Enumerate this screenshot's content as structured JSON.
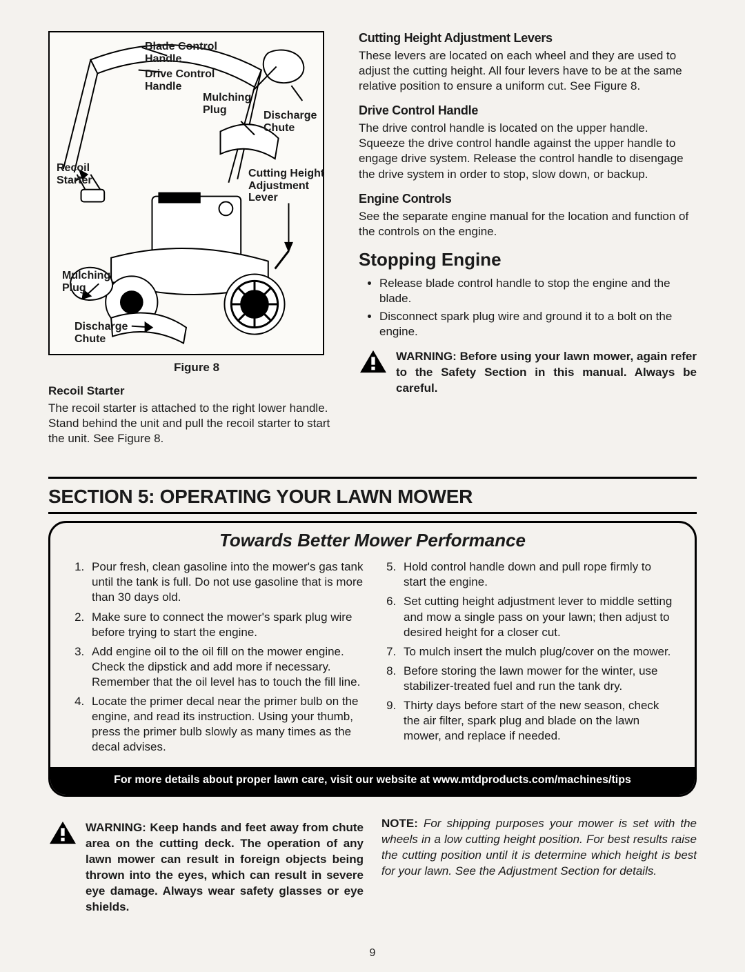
{
  "page_number": "9",
  "colors": {
    "text": "#1a1a1a",
    "page_bg": "#f4f2ee",
    "box_bg": "#fbfaf7",
    "border": "#000000",
    "footer_bg": "#000000",
    "footer_text": "#ffffff"
  },
  "typography": {
    "body_family": "Arial, Helvetica, sans-serif",
    "narrow_family": "Arial Narrow, Arial, sans-serif",
    "body_size_pt": 13,
    "subheading_size_pt": 13,
    "section_title_size_pt": 21,
    "tips_title_size_pt": 20
  },
  "figure": {
    "caption": "Figure 8",
    "labels": {
      "blade_control_handle": "Blade Control\nHandle",
      "drive_control_handle": "Drive Control\nHandle",
      "mulching_plug_upper": "Mulching\nPlug",
      "discharge_chute_upper": "Discharge\nChute",
      "recoil_starter": "Recoil\nStarter",
      "cutting_height_lever": "Cutting Height\nAdjustment\nLever",
      "mulching_plug_lower": "Mulching\nPlug",
      "discharge_chute_lower": "Discharge\nChute"
    }
  },
  "left": {
    "recoil_heading": "Recoil Starter",
    "recoil_body": "The recoil starter is attached to the right lower handle. Stand behind the unit and pull the recoil starter to start the unit. See Figure 8."
  },
  "right": {
    "cutting_heading": "Cutting Height Adjustment Levers",
    "cutting_body": "These levers are located on each wheel and they are used to adjust the cutting height. All four levers have to be at the same relative position to ensure a uniform cut. See Figure 8.",
    "drive_heading": "Drive Control Handle",
    "drive_body": "The drive control handle is located on the upper handle. Squeeze the drive control handle against the upper handle to engage drive system. Release the control handle to disengage the drive system in order to stop, slow down, or backup.",
    "engine_heading": "Engine Controls",
    "engine_body": "See the separate engine manual for the location and function of the controls on the engine.",
    "stop_heading": "Stopping Engine",
    "stop_bullets": [
      "Release blade control handle to stop the engine and the blade.",
      "Disconnect spark plug wire and ground it to a bolt on the engine."
    ],
    "warn_lead": "WARNING: ",
    "warn_body": "Before using your lawn mower, again refer to the Safety Section in this manual.  Always be careful."
  },
  "section5": {
    "title": "SECTION 5:  OPERATING YOUR LAWN MOWER",
    "tips_title": "Towards Better Mower Performance",
    "tips_left": [
      "Pour fresh, clean gasoline into the mower's gas tank until the tank is full. Do not use gasoline that is more than 30 days old.",
      "Make sure to connect the mower's spark plug wire before trying to start the engine.",
      "Add engine oil to the oil fill on the mower engine. Check the dipstick and add more if necessary. Remember that the oil level has to touch the fill line.",
      "Locate the primer decal near the primer bulb on the engine, and read its instruction. Using your thumb, press the primer bulb slowly as many times as the decal advises."
    ],
    "tips_right": [
      "Hold control handle down and pull rope firmly to start the engine.",
      "Set cutting height adjustment lever to middle setting and mow a single pass on your lawn; then adjust to desired height for a closer cut.",
      "To mulch insert the mulch plug/cover on the mower.",
      "Before storing the lawn mower for the winter, use stabilizer-treated fuel and run the tank dry.",
      "Thirty days before start of the new season, check the air filter, spark plug and blade on the lawn mower, and replace if needed."
    ],
    "tips_footer": "For more details about proper lawn care, visit our website at www.mtdproducts.com/machines/tips"
  },
  "bottom": {
    "warn_lead": "WARNING: ",
    "warn_body": "Keep hands and feet away from chute area on the cutting deck. The operation of any lawn mower can result in foreign objects being thrown into the eyes, which can result in severe eye damage. Always wear safety glasses or eye shields.",
    "note_lead": "NOTE: ",
    "note_body": "For shipping purposes your mower is set with the wheels in a low cutting height position. For best results raise the cutting position until it is determine which height is best for your lawn. See the Adjustment Section for details."
  }
}
